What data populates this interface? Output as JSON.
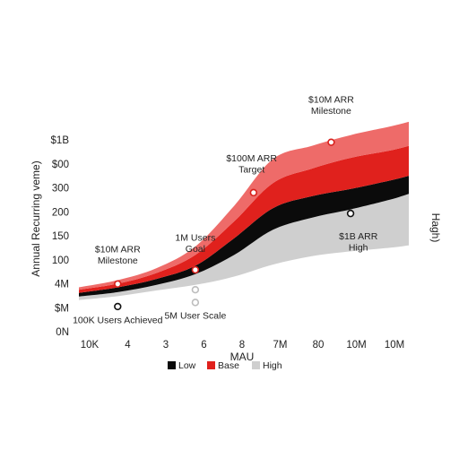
{
  "chart_data": {
    "type": "area",
    "title": "",
    "xlabel": "MAU",
    "ylabel": "Annual Recurring veme)",
    "ylabel_right": "Hagh)",
    "x_ticks": [
      "10K",
      "4",
      "3",
      "6",
      "8",
      "7M",
      "80",
      "10M",
      "10M"
    ],
    "y_ticks": [
      "0N",
      "$M",
      "4M",
      "100",
      "150",
      "200",
      "300",
      "$00",
      "$1B"
    ],
    "legend_position": "bottom",
    "grid": false,
    "x": [
      0,
      1,
      2,
      3,
      4,
      5,
      6,
      7,
      8,
      8.5
    ],
    "series": [
      {
        "name": "High",
        "color": "#cfcfcf",
        "lower": [
          1.32,
          1.48,
          1.72,
          1.95,
          2.3,
          2.8,
          3.15,
          3.35,
          3.5,
          3.6
        ],
        "upper": [
          1.47,
          1.65,
          1.95,
          2.4,
          3.2,
          4.25,
          4.75,
          5.1,
          5.5,
          5.75
        ]
      },
      {
        "name": "Low",
        "color": "#0b0b0b",
        "lower": [
          1.47,
          1.65,
          1.95,
          2.4,
          3.2,
          4.25,
          4.75,
          5.1,
          5.5,
          5.75
        ],
        "upper": [
          1.62,
          1.85,
          2.2,
          2.75,
          3.9,
          5.15,
          5.65,
          5.95,
          6.3,
          6.5
        ]
      },
      {
        "name": "Base",
        "color": "#e0211d",
        "lower": [
          1.62,
          1.85,
          2.2,
          2.75,
          3.9,
          5.15,
          5.65,
          5.95,
          6.3,
          6.5
        ],
        "upper": [
          1.75,
          2.0,
          2.45,
          3.2,
          4.6,
          6.2,
          6.8,
          7.25,
          7.55,
          7.75
        ]
      },
      {
        "name": "",
        "color": "#ee6b69",
        "lower": [
          1.75,
          2.0,
          2.45,
          3.2,
          4.6,
          6.2,
          6.8,
          7.25,
          7.55,
          7.75
        ],
        "upper": [
          1.85,
          2.15,
          2.65,
          3.55,
          5.25,
          7.2,
          7.75,
          8.2,
          8.55,
          8.75
        ]
      }
    ],
    "markers": [
      {
        "x": 1.0,
        "y": 1.99,
        "style": "red"
      },
      {
        "x": 1.0,
        "y": 1.05,
        "style": "black"
      },
      {
        "x": 3.0,
        "y": 2.58,
        "style": "red"
      },
      {
        "x": 3.0,
        "y": 1.75,
        "style": "white"
      },
      {
        "x": 3.0,
        "y": 1.22,
        "style": "white"
      },
      {
        "x": 4.5,
        "y": 5.8,
        "style": "red"
      },
      {
        "x": 6.5,
        "y": 7.9,
        "style": "red"
      },
      {
        "x": 7.0,
        "y": 4.93,
        "style": "black"
      }
    ],
    "annotations": [
      {
        "lines": [
          "$10M ARR",
          "Milestone"
        ],
        "x": 1.0,
        "y": 3.3
      },
      {
        "lines": [
          "100K Users Achieved"
        ],
        "x": 1.0,
        "y": 0.35
      },
      {
        "lines": [
          "1M Users",
          "Goal"
        ],
        "x": 3.0,
        "y": 3.8
      },
      {
        "lines": [
          "5M User Scale"
        ],
        "x": 3.0,
        "y": 0.55
      },
      {
        "lines": [
          "$100M ARR",
          "Target"
        ],
        "x": 4.45,
        "y": 7.1
      },
      {
        "lines": [
          "$10M ARR",
          "Milestone"
        ],
        "x": 6.5,
        "y": 9.55
      },
      {
        "lines": [
          "$1B ARR",
          "High"
        ],
        "x": 7.2,
        "y": 3.85
      }
    ],
    "legend": [
      {
        "label": "Low",
        "color": "#0b0b0b"
      },
      {
        "label": "Base",
        "color": "#e0211d"
      },
      {
        "label": "High",
        "color": "#cfcfcf"
      }
    ],
    "xlim": [
      0,
      8.5
    ],
    "ylim": [
      0,
      8
    ]
  }
}
